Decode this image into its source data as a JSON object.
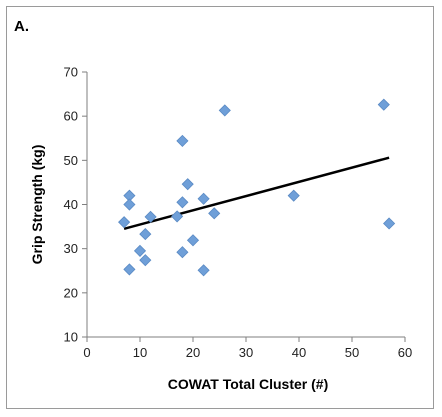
{
  "panel_label": "A.",
  "chart_data": {
    "type": "scatter",
    "xlabel": "COWAT Total Cluster (#)",
    "ylabel": "Grip Strength (kg)",
    "xlim": [
      0,
      60
    ],
    "ylim": [
      10,
      70
    ],
    "xticks": [
      0,
      10,
      20,
      30,
      40,
      50,
      60
    ],
    "yticks": [
      10,
      20,
      30,
      40,
      50,
      60,
      70
    ],
    "grid": false,
    "marker": "diamond",
    "marker_color": "#6f9fd8",
    "trendline_color": "#000000",
    "points": [
      {
        "x": 7,
        "y": 36
      },
      {
        "x": 8,
        "y": 42
      },
      {
        "x": 8,
        "y": 40
      },
      {
        "x": 8,
        "y": 25.3
      },
      {
        "x": 10,
        "y": 29.5
      },
      {
        "x": 11,
        "y": 27.4
      },
      {
        "x": 11,
        "y": 33.3
      },
      {
        "x": 12,
        "y": 37.2
      },
      {
        "x": 17,
        "y": 37.3
      },
      {
        "x": 18,
        "y": 54.4
      },
      {
        "x": 18,
        "y": 40.5
      },
      {
        "x": 18,
        "y": 29.2
      },
      {
        "x": 19,
        "y": 44.6
      },
      {
        "x": 20,
        "y": 31.9
      },
      {
        "x": 22,
        "y": 41.3
      },
      {
        "x": 22,
        "y": 25.1
      },
      {
        "x": 24,
        "y": 38
      },
      {
        "x": 26,
        "y": 61.3
      },
      {
        "x": 39,
        "y": 42
      },
      {
        "x": 56,
        "y": 62.6
      },
      {
        "x": 57,
        "y": 35.7
      }
    ],
    "trendline": {
      "x": [
        7,
        57
      ],
      "y": [
        34.5,
        50.6
      ]
    }
  }
}
